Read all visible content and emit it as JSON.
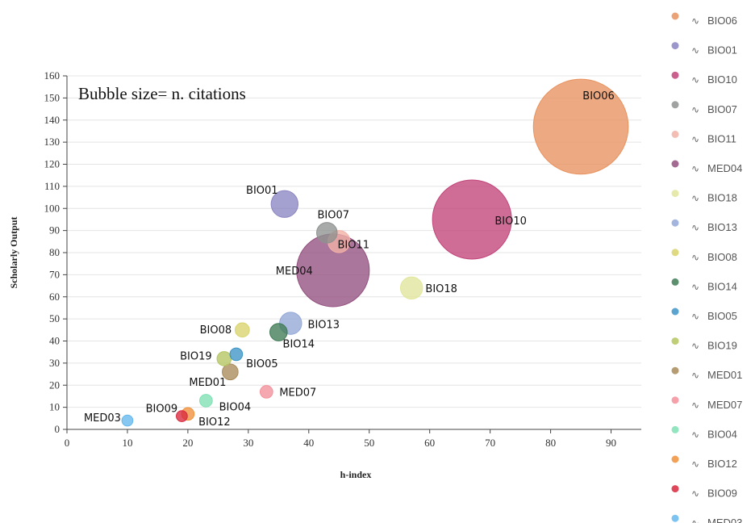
{
  "chart_data": {
    "type": "scatter",
    "subtype": "bubble",
    "annotation": "Bubble size= n. citations",
    "xlabel": "h-index",
    "ylabel": "Scholarly Output",
    "xlim": [
      0,
      95
    ],
    "ylim": [
      0,
      160
    ],
    "xticks": [
      0,
      10,
      20,
      30,
      40,
      50,
      60,
      70,
      80,
      90
    ],
    "yticks": [
      0,
      10,
      20,
      30,
      40,
      50,
      60,
      70,
      80,
      90,
      100,
      110,
      120,
      130,
      140,
      150,
      160
    ],
    "grid": "horizontal",
    "legend_position": "right",
    "series": [
      {
        "name": "BIO06",
        "x": 85,
        "y": 137,
        "bubble_size": 60,
        "color": "#e8925f"
      },
      {
        "name": "BIO01",
        "x": 36,
        "y": 102,
        "bubble_size": 17,
        "color": "#8b85c1"
      },
      {
        "name": "BIO10",
        "x": 67,
        "y": 95,
        "bubble_size": 50,
        "color": "#c2447a"
      },
      {
        "name": "BIO07",
        "x": 43,
        "y": 89,
        "bubble_size": 13,
        "color": "#8e928f"
      },
      {
        "name": "BIO11",
        "x": 45,
        "y": 85,
        "bubble_size": 14,
        "color": "#f2b1a7"
      },
      {
        "name": "MED04",
        "x": 44,
        "y": 72,
        "bubble_size": 46,
        "color": "#93507f"
      },
      {
        "name": "BIO18",
        "x": 57,
        "y": 64,
        "bubble_size": 14,
        "color": "#e1e69b"
      },
      {
        "name": "BIO13",
        "x": 37,
        "y": 48,
        "bubble_size": 14,
        "color": "#93a8d6"
      },
      {
        "name": "BIO08",
        "x": 29,
        "y": 45,
        "bubble_size": 9,
        "color": "#d9d36c"
      },
      {
        "name": "BIO14",
        "x": 35,
        "y": 44,
        "bubble_size": 11,
        "color": "#3f7b55"
      },
      {
        "name": "BIO05",
        "x": 28,
        "y": 34,
        "bubble_size": 8,
        "color": "#3e94c7"
      },
      {
        "name": "BIO19",
        "x": 26,
        "y": 32,
        "bubble_size": 9,
        "color": "#b5c560"
      },
      {
        "name": "MED01",
        "x": 27,
        "y": 26,
        "bubble_size": 10,
        "color": "#a98b5a"
      },
      {
        "name": "MED07",
        "x": 33,
        "y": 17,
        "bubble_size": 8,
        "color": "#f4909b"
      },
      {
        "name": "BIO04",
        "x": 23,
        "y": 13,
        "bubble_size": 8,
        "color": "#7fe0b3"
      },
      {
        "name": "BIO12",
        "x": 20,
        "y": 7,
        "bubble_size": 8,
        "color": "#f0913a"
      },
      {
        "name": "BIO09",
        "x": 19,
        "y": 6,
        "bubble_size": 7,
        "color": "#d8283d"
      },
      {
        "name": "MED03",
        "x": 10,
        "y": 4,
        "bubble_size": 7,
        "color": "#65b8ee"
      }
    ],
    "legend_order": [
      "BIO06",
      "BIO01",
      "BIO10",
      "BIO07",
      "BIO11",
      "MED04",
      "BIO18",
      "BIO13",
      "BIO08",
      "BIO14",
      "BIO05",
      "BIO19",
      "MED01",
      "MED07",
      "BIO04",
      "BIO12",
      "BIO09",
      "MED03"
    ]
  }
}
